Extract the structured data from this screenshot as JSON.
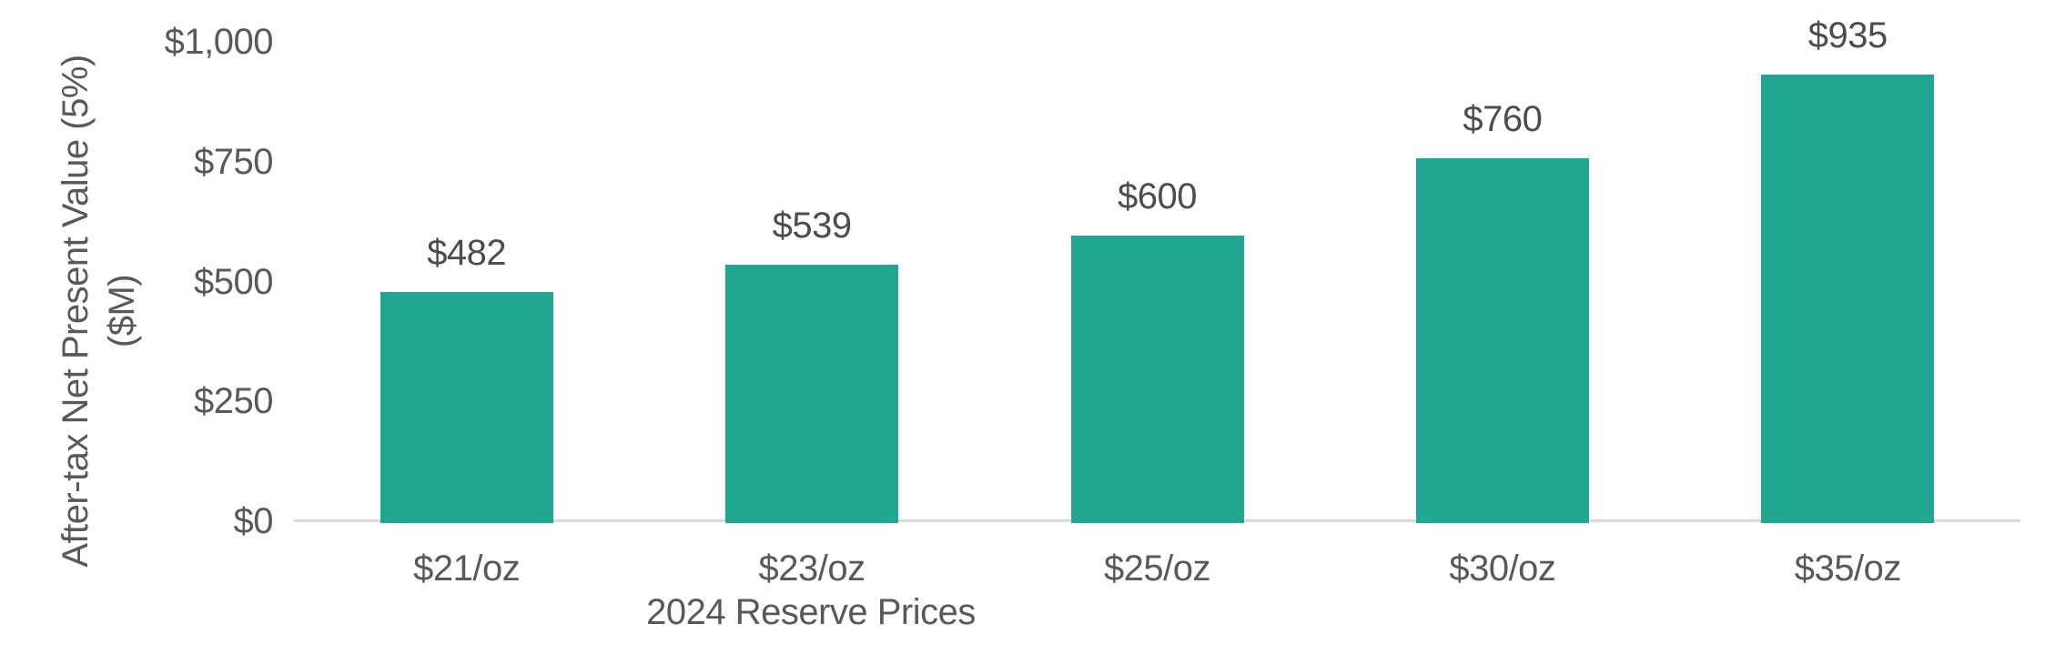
{
  "chart_data": {
    "type": "bar",
    "title": "",
    "categories": [
      "$21/oz",
      "$23/oz",
      "$25/oz",
      "$30/oz",
      "$35/oz"
    ],
    "values": [
      482,
      539,
      600,
      760,
      935
    ],
    "data_labels": [
      "$482",
      "$539",
      "$600",
      "$760",
      "$935"
    ],
    "xlabel": "2024 Reserve Prices",
    "ylabel_line1": "After-tax Net Present Value (5%)",
    "ylabel_line2": "($M)",
    "yticks": [
      {
        "label": "$0",
        "value": 0
      },
      {
        "label": "$250",
        "value": 250
      },
      {
        "label": "$500",
        "value": 500
      },
      {
        "label": "$750",
        "value": 750
      },
      {
        "label": "$1,000",
        "value": 1000
      }
    ],
    "ylim": [
      0,
      1000
    ],
    "grid": false,
    "legend": false,
    "colors": {
      "bar": "#21a791",
      "axis_line": "#d9d9d9",
      "axis_text": "#595959",
      "data_label_text": "#4d4d4d",
      "background": "#ffffff"
    }
  }
}
